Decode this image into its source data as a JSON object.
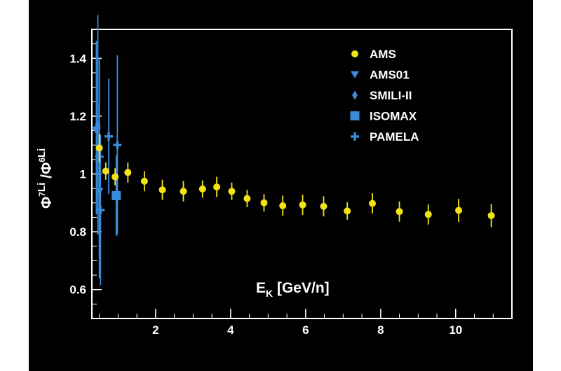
{
  "chart_data": {
    "type": "scatter",
    "title": "",
    "xlabel": "E_K [GeV/n]",
    "ylabel": "Φ^7Li / Φ^6Li",
    "x_axis": {
      "label_main": "E",
      "label_sub": "K",
      "label_rest": " [GeV/n]",
      "range": [
        0.3,
        11.5
      ],
      "ticks": [
        2,
        4,
        6,
        8,
        10
      ],
      "tick_labels": [
        "2",
        "4",
        "6",
        "8",
        "10"
      ]
    },
    "y_axis": {
      "label_phi1": "Φ",
      "label_sup1": "7",
      "label_li1": "Li",
      "label_slash": " /",
      "label_phi2": "Φ",
      "label_sup2": "6",
      "label_li2": "Li",
      "range": [
        0.5,
        1.5
      ],
      "ticks": [
        0.6,
        0.8,
        1.0,
        1.2,
        1.4
      ],
      "tick_labels": [
        "0.6",
        "0.8",
        "1",
        "1.2",
        "1.4"
      ]
    },
    "grid": false,
    "legend_position": "top-right",
    "series": [
      {
        "name": "AMS",
        "marker": "circle",
        "color": "#f2e21a",
        "points": [
          {
            "x": 0.5,
            "y": 1.09,
            "err": 0.05
          },
          {
            "x": 0.67,
            "y": 1.01,
            "err": 0.03
          },
          {
            "x": 0.92,
            "y": 0.99,
            "err": 0.03
          },
          {
            "x": 1.26,
            "y": 1.005,
            "err": 0.035
          },
          {
            "x": 1.7,
            "y": 0.975,
            "err": 0.035
          },
          {
            "x": 2.18,
            "y": 0.945,
            "err": 0.035
          },
          {
            "x": 2.74,
            "y": 0.94,
            "err": 0.035
          },
          {
            "x": 3.25,
            "y": 0.948,
            "err": 0.03
          },
          {
            "x": 3.63,
            "y": 0.955,
            "err": 0.035
          },
          {
            "x": 4.03,
            "y": 0.94,
            "err": 0.03
          },
          {
            "x": 4.44,
            "y": 0.915,
            "err": 0.03
          },
          {
            "x": 4.89,
            "y": 0.9,
            "err": 0.03
          },
          {
            "x": 5.39,
            "y": 0.89,
            "err": 0.035
          },
          {
            "x": 5.92,
            "y": 0.893,
            "err": 0.035
          },
          {
            "x": 6.48,
            "y": 0.888,
            "err": 0.035
          },
          {
            "x": 7.11,
            "y": 0.872,
            "err": 0.03
          },
          {
            "x": 7.78,
            "y": 0.898,
            "err": 0.035
          },
          {
            "x": 8.5,
            "y": 0.87,
            "err": 0.035
          },
          {
            "x": 9.27,
            "y": 0.86,
            "err": 0.035
          },
          {
            "x": 10.08,
            "y": 0.874,
            "err": 0.04
          },
          {
            "x": 10.95,
            "y": 0.856,
            "err": 0.04
          }
        ]
      },
      {
        "name": "AMS01",
        "marker": "triangle-down",
        "color": "#3a8cd8",
        "points": [
          {
            "x": 0.42,
            "y": 1.15,
            "err": 0.25
          },
          {
            "x": 0.5,
            "y": 0.94,
            "err": 0.3
          }
        ]
      },
      {
        "name": "SMILI-II",
        "marker": "diamond",
        "color": "#3a8cd8",
        "points": [
          {
            "x": 0.46,
            "y": 1.17,
            "err": 0.38
          }
        ]
      },
      {
        "name": "ISOMAX",
        "marker": "square",
        "color": "#3a8cd8",
        "points": [
          {
            "x": 0.95,
            "y": 0.925,
            "err": 0.14
          }
        ]
      },
      {
        "name": "PAMELA",
        "marker": "plus",
        "color": "#3a8cd8",
        "points": [
          {
            "x": 0.42,
            "y": 1.16,
            "err": 0.3
          },
          {
            "x": 0.5,
            "y": 1.06,
            "err": 0.34
          },
          {
            "x": 0.53,
            "y": 0.875,
            "err": 0.26
          },
          {
            "x": 0.75,
            "y": 1.13,
            "err": 0.2
          },
          {
            "x": 0.98,
            "y": 1.1,
            "err": 0.31
          }
        ]
      }
    ]
  }
}
